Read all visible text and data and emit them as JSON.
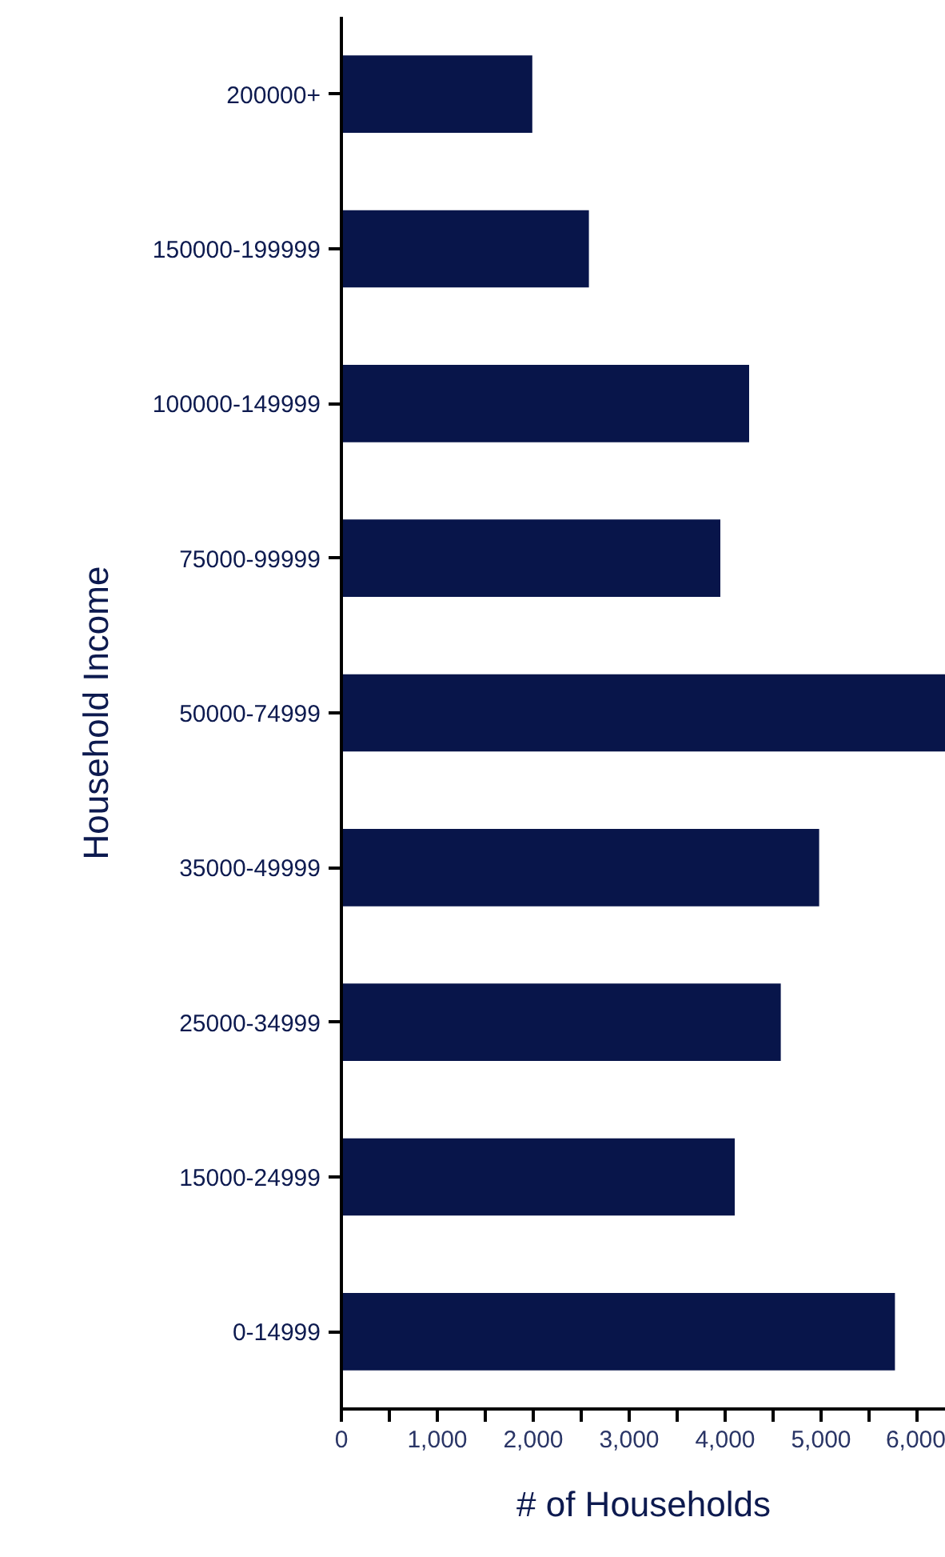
{
  "chart_data": {
    "type": "bar",
    "orientation": "horizontal",
    "xlabel": "# of Households",
    "ylabel": "Household Income",
    "categories": [
      "200000+",
      "150000-199999",
      "100000-149999",
      "75000-99999",
      "50000-74999",
      "35000-49999",
      "25000-34999",
      "15000-24999",
      "0-14999"
    ],
    "values": [
      1990,
      2580,
      4250,
      3950,
      6300,
      4980,
      4580,
      4100,
      5770
    ],
    "color": "#08154a",
    "xlim": [
      0,
      6300
    ],
    "xticks": [
      0,
      {
        "value": 500,
        "label": null
      },
      {
        "value": 1000,
        "label": "1,000"
      },
      {
        "value": 1500,
        "label": null
      },
      {
        "value": 2000,
        "label": "2,000"
      },
      {
        "value": 2500,
        "label": null
      },
      {
        "value": 3000,
        "label": "3,000"
      },
      {
        "value": 3500,
        "label": null
      },
      {
        "value": 4000,
        "label": "4,000"
      },
      {
        "value": 4500,
        "label": null
      },
      {
        "value": 5000,
        "label": "5,000"
      },
      {
        "value": 5500,
        "label": null
      },
      {
        "value": 6000,
        "label": "6,000"
      }
    ],
    "grid": false
  }
}
